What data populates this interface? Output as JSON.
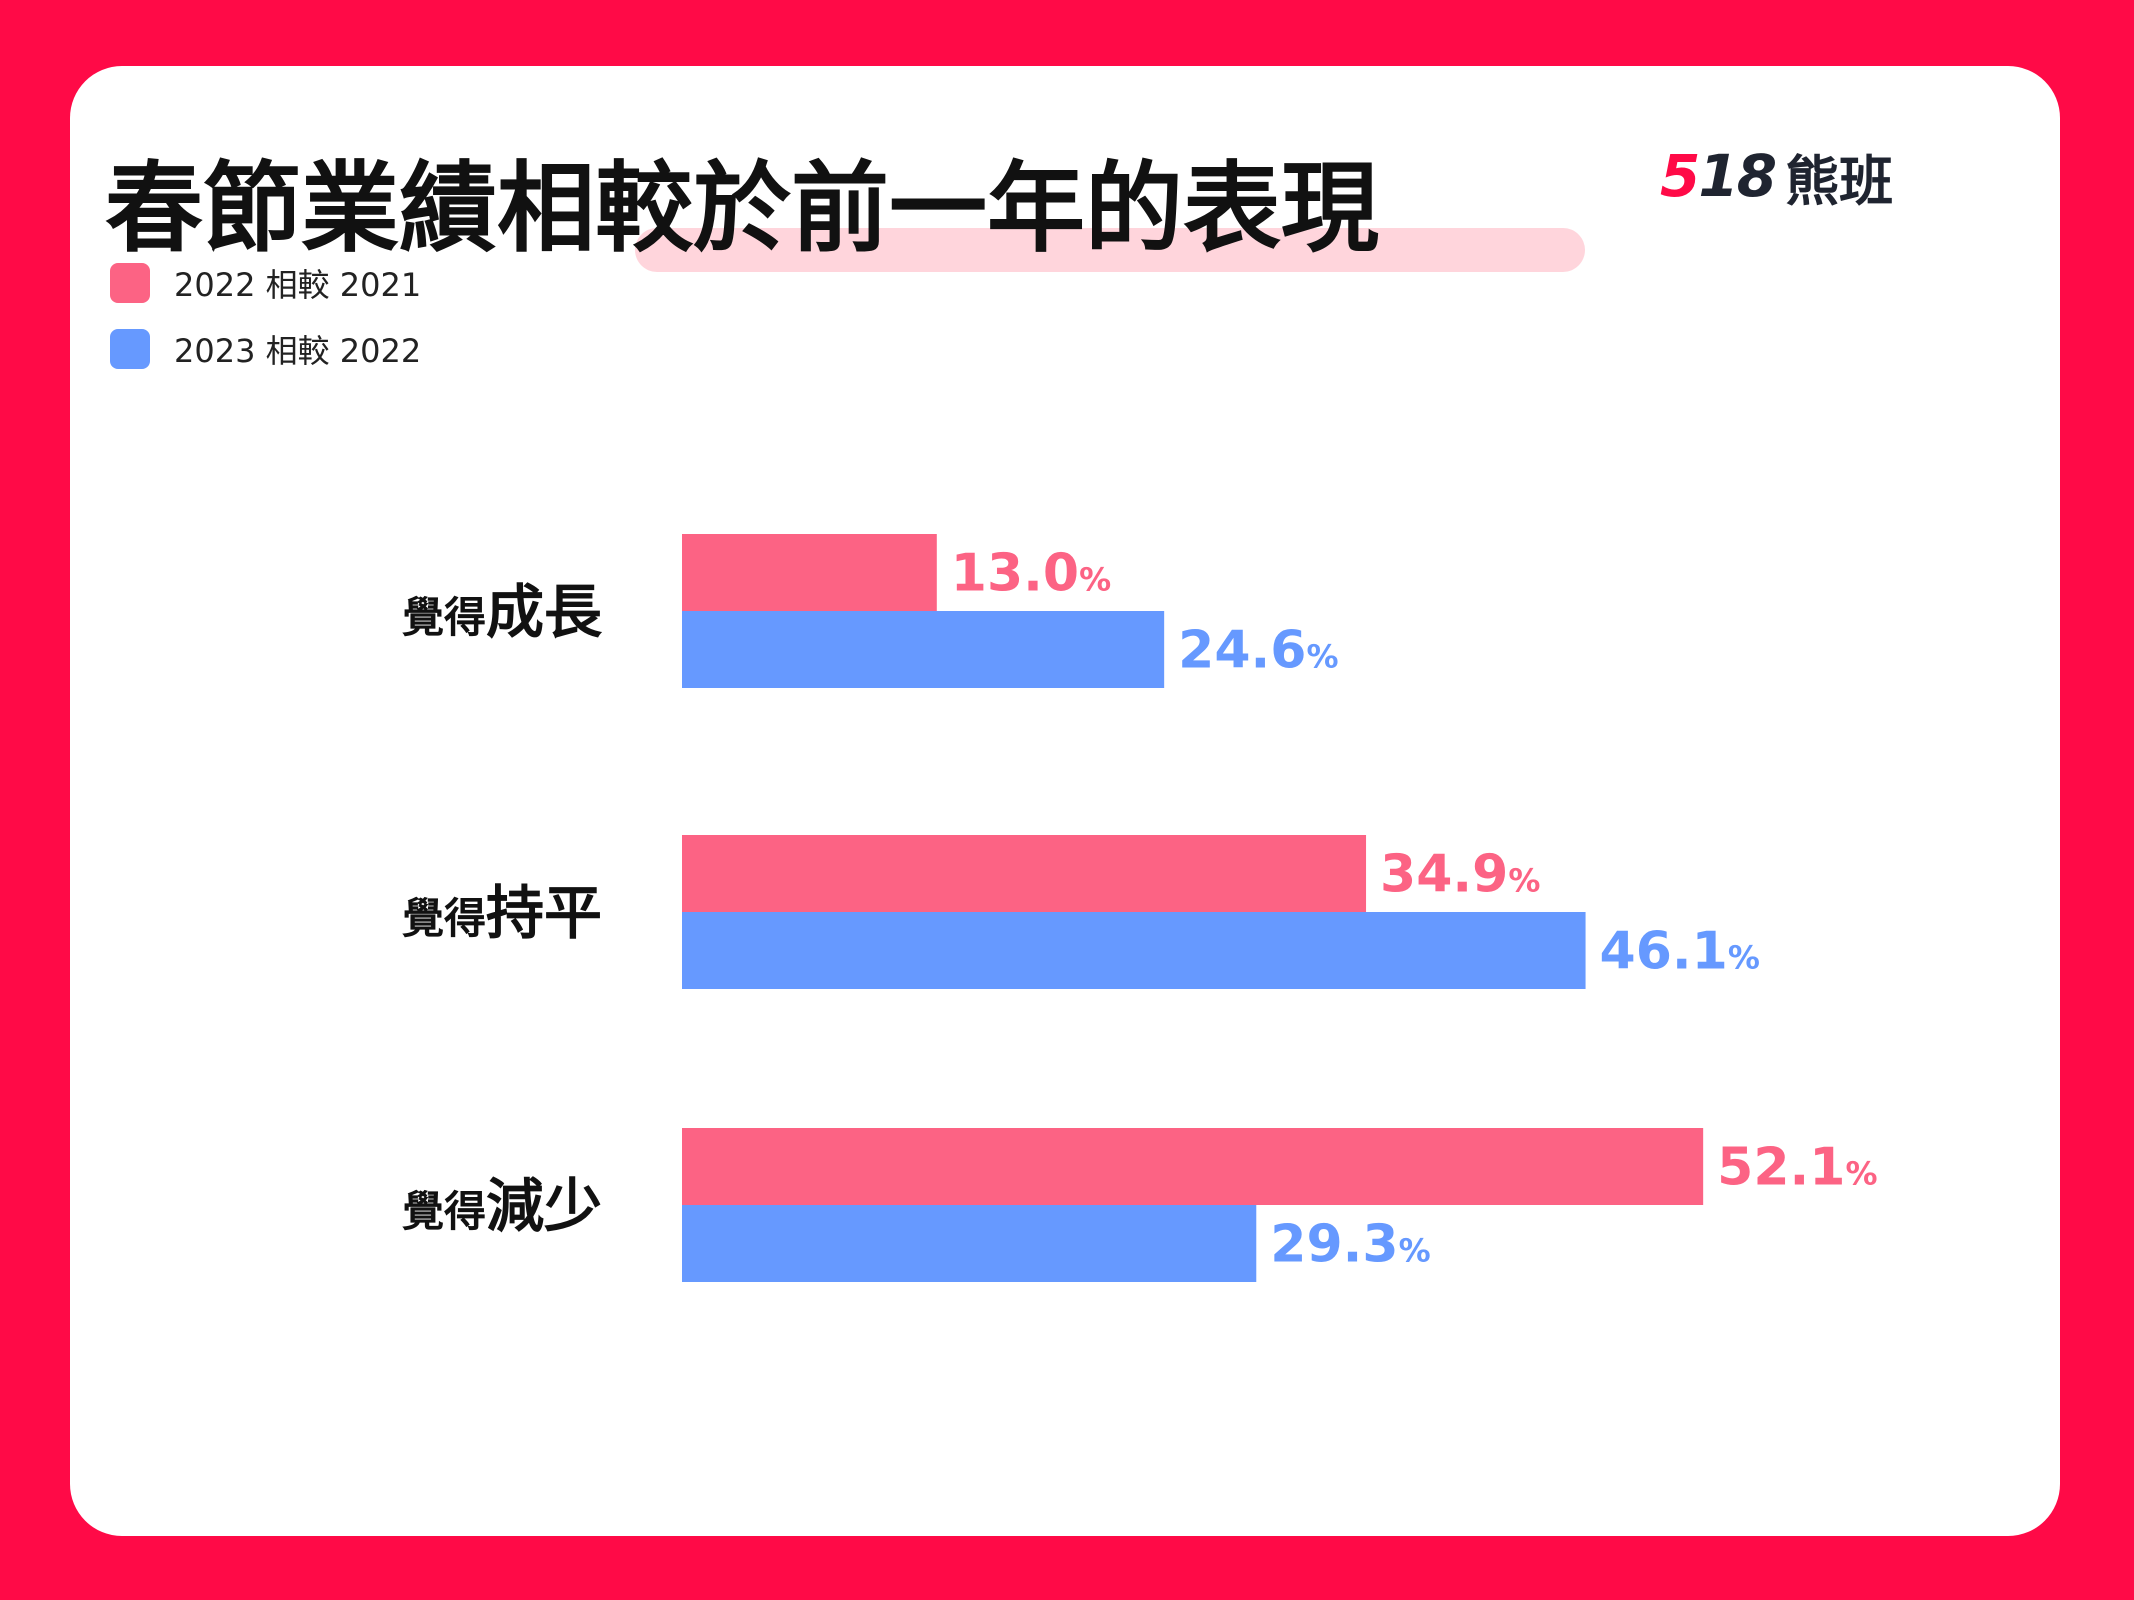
{
  "title": "春節業績相較於前一年的表現",
  "logo": {
    "number_accent": "5",
    "number_rest": "18",
    "text": "熊班"
  },
  "colors": {
    "background": "#ff0a47",
    "series_2022": "#fc6384",
    "series_2023": "#6699ff",
    "text": "#111111"
  },
  "chart_data": {
    "type": "bar",
    "orientation": "horizontal",
    "categories": [
      {
        "prefix": "覺得",
        "main": "成長"
      },
      {
        "prefix": "覺得",
        "main": "持平"
      },
      {
        "prefix": "覺得",
        "main": "減少"
      }
    ],
    "series": [
      {
        "name": "2022 相較 2021",
        "values": [
          13.0,
          34.9,
          52.1
        ],
        "color": "#fc6384"
      },
      {
        "name": "2023 相較 2022",
        "values": [
          24.6,
          46.1,
          29.3
        ],
        "color": "#6699ff"
      }
    ],
    "unit": "%",
    "legend_position": "top-left",
    "grid": false,
    "xlim": [
      0,
      100
    ]
  }
}
